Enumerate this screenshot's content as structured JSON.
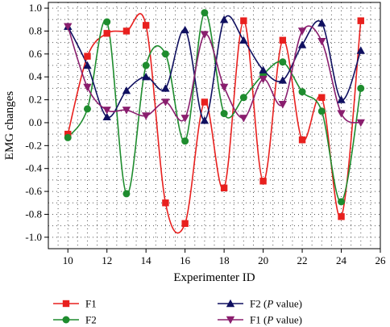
{
  "chart_data": {
    "type": "line",
    "xlabel": "Experimenter ID",
    "ylabel": "EMG changes",
    "xlim": [
      9,
      26
    ],
    "ylim": [
      -1.1,
      1.05
    ],
    "xticks": [
      10,
      12,
      14,
      16,
      18,
      20,
      22,
      24,
      26
    ],
    "yticks": [
      -1.0,
      -0.8,
      -0.6,
      -0.4,
      -0.2,
      0.0,
      0.2,
      0.4,
      0.6,
      0.8,
      1.0
    ],
    "tick_labels_x": [
      "10",
      "12",
      "14",
      "16",
      "18",
      "20",
      "22",
      "24",
      "26"
    ],
    "tick_labels_y": [
      "-1.0",
      "-0.8",
      "-0.6",
      "-0.4",
      "-0.2",
      "0.0",
      "0.2",
      "0.4",
      "0.6",
      "0.8",
      "1.0"
    ],
    "grid": "dotted",
    "legend_position": "bottom",
    "smooth": true,
    "series": [
      {
        "name": "F1",
        "label_pre": "F1",
        "label_italic": "",
        "label_post": "",
        "color": "#e8201e",
        "marker": "square",
        "x": [
          10,
          11,
          12,
          13,
          14,
          15,
          16,
          17,
          18,
          19,
          20,
          21,
          22,
          23,
          24,
          25
        ],
        "y": [
          -0.1,
          0.58,
          0.78,
          0.8,
          0.85,
          -0.7,
          -0.88,
          0.18,
          -0.57,
          0.89,
          -0.51,
          0.72,
          -0.15,
          0.22,
          -0.82,
          0.89
        ]
      },
      {
        "name": "F2",
        "label_pre": "F2",
        "label_italic": "",
        "label_post": "",
        "color": "#1e8c2e",
        "marker": "circle",
        "x": [
          10,
          11,
          12,
          13,
          14,
          15,
          16,
          17,
          18,
          19,
          20,
          21,
          22,
          23,
          24,
          25
        ],
        "y": [
          -0.13,
          0.12,
          0.88,
          -0.62,
          0.5,
          0.6,
          -0.16,
          0.96,
          0.08,
          0.22,
          0.42,
          0.53,
          0.27,
          0.1,
          -0.69,
          0.3
        ]
      },
      {
        "name": "F2 (P value)",
        "label_pre": "F2 (",
        "label_italic": "P",
        "label_post": " value)",
        "color": "#101060",
        "marker": "triangle-up",
        "x": [
          10,
          11,
          12,
          13,
          14,
          15,
          16,
          17,
          18,
          19,
          20,
          21,
          22,
          23,
          24,
          25
        ],
        "y": [
          0.84,
          0.5,
          0.05,
          0.28,
          0.4,
          0.3,
          0.81,
          0.02,
          0.9,
          0.72,
          0.46,
          0.37,
          0.68,
          0.87,
          0.2,
          0.63
        ]
      },
      {
        "name": "F1 (P value)",
        "label_pre": "F1 (",
        "label_italic": "P",
        "label_post": " value)",
        "color": "#8a1e6e",
        "marker": "triangle-down",
        "x": [
          10,
          11,
          12,
          13,
          14,
          15,
          16,
          17,
          18,
          19,
          20,
          21,
          22,
          23,
          24,
          25
        ],
        "y": [
          0.84,
          0.31,
          0.11,
          0.11,
          0.06,
          0.18,
          0.04,
          0.77,
          0.31,
          0.04,
          0.38,
          0.16,
          0.8,
          0.71,
          0.08,
          0.0
        ]
      }
    ]
  }
}
